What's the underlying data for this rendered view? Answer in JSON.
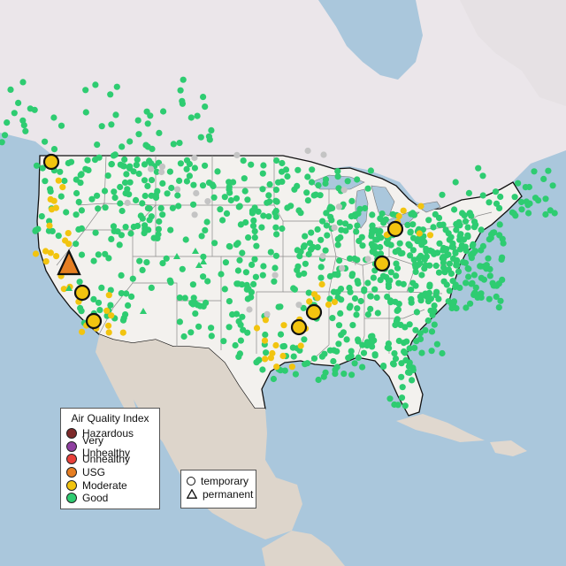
{
  "legend": {
    "title": "Air Quality Index",
    "categories": [
      {
        "label": "Hazardous",
        "color": "#7e2a2a"
      },
      {
        "label": "Very Unhealthy",
        "color": "#8f3fa0"
      },
      {
        "label": "Unhealthy",
        "color": "#e8403a"
      },
      {
        "label": "USG",
        "color": "#e67e22"
      },
      {
        "label": "Moderate",
        "color": "#f2c40f"
      },
      {
        "label": "Good",
        "color": "#2ecc71"
      }
    ],
    "types": [
      {
        "label": "temporary",
        "icon": "circle-icon"
      },
      {
        "label": "permanent",
        "icon": "triangle-icon"
      }
    ]
  },
  "colors": {
    "water": "#aac7dc",
    "land": "#ececec",
    "us_land": "#f3f1ee",
    "mexico": "#ddd5cb",
    "canada": "#ebe6ea",
    "nodata": "#c4c4c4"
  }
}
